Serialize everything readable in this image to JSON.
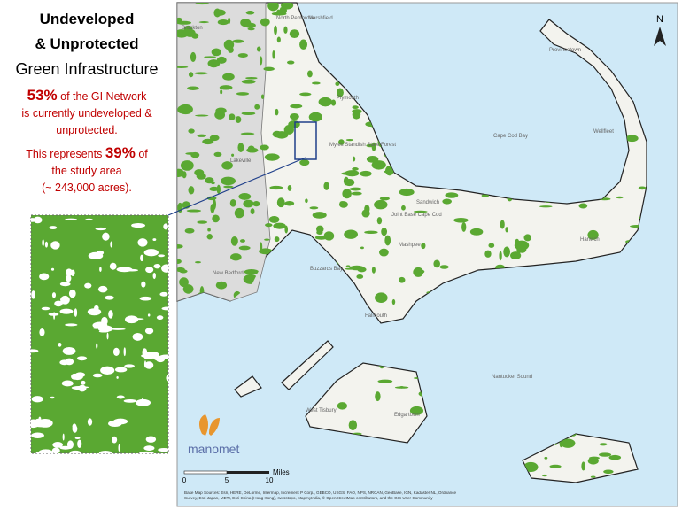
{
  "panel": {
    "title_lines": [
      "Undeveloped",
      "& Unprotected"
    ],
    "subtitle": "Green Infrastructure",
    "stat1": {
      "value": "53%",
      "lines": [
        "of the GI Network",
        "is currently undeveloped &",
        "unprotected."
      ]
    },
    "stat2": {
      "lead": "This represents",
      "value": "39%",
      "tail": "of",
      "lines": [
        "the study area",
        "(~ 243,000 acres)."
      ]
    }
  },
  "map": {
    "north": "N",
    "labels": [
      "Brockton",
      "North Pembroke",
      "Marshfield",
      "Plymouth",
      "Myles Standish State Forest",
      "Lakeville",
      "New Bedford",
      "Buzzards Bay",
      "Cape Cod Bay",
      "Sandwich",
      "Joint Base Cape Cod",
      "Mashpee",
      "Falmouth",
      "Nantucket Sound",
      "Provincetown",
      "Wellfleet",
      "Harwich",
      "Edgartown",
      "West Tisbury"
    ],
    "scale": {
      "ticks": [
        "0",
        "5",
        "10"
      ],
      "unit": "Miles"
    },
    "logo": "manomet",
    "attribution": [
      "Base Map Sources: Esri, HERE, DeLorme, Intermap, Increment P Corp., GEBCO, USGS, FAO, NPS, NRCAN, GeoBase, IGN, Kadaster NL, Ordnance",
      "Survey, Esri Japan, METI, Esri China (Hong Kong), swisstopo, MapmyIndia, © OpenStreetMap contributors, and the GIS User Community"
    ]
  }
}
